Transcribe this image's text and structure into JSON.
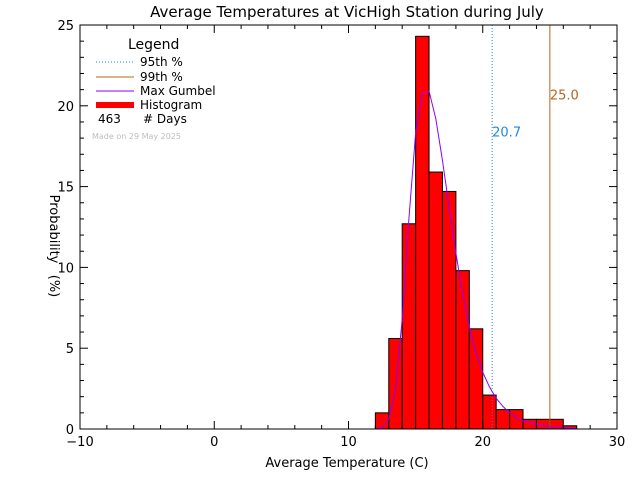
{
  "chart_data": {
    "type": "bar",
    "title": "Average Temperatures at VicHigh Station during July",
    "xlabel": "Average Temperature (C)",
    "ylabel": "Probability",
    "ylabel_unit": "(%)",
    "xlim": [
      -10,
      30
    ],
    "ylim": [
      0,
      25
    ],
    "x_ticks": [
      "−10",
      "0",
      "10",
      "20",
      "30"
    ],
    "x_tick_values": [
      -10,
      0,
      10,
      20,
      30
    ],
    "y_ticks": [
      "0",
      "5",
      "10",
      "15",
      "20",
      "25"
    ],
    "y_tick_values": [
      0,
      5,
      10,
      15,
      20,
      25
    ],
    "bin_width": 1,
    "histogram": {
      "name": "Histogram",
      "color": "#ff0000",
      "bin_starts": [
        12,
        13,
        14,
        15,
        16,
        17,
        18,
        19,
        20,
        21,
        22,
        23,
        24,
        25,
        26
      ],
      "values": [
        1.0,
        5.6,
        12.7,
        24.3,
        15.9,
        14.7,
        9.8,
        6.2,
        2.1,
        1.2,
        1.2,
        0.6,
        0.6,
        0.6,
        0.2
      ]
    },
    "gumbel_curve": {
      "name": "Max Gumbel",
      "color": "#8b00ff",
      "x": [
        12.0,
        12.5,
        13.0,
        13.5,
        14.0,
        14.5,
        15.0,
        15.5,
        16.0,
        16.5,
        17.0,
        17.5,
        18.0,
        18.5,
        19.0,
        19.5,
        20.0,
        20.5,
        21.0,
        21.5,
        22.0,
        22.5,
        23.0,
        24.0,
        25.0,
        26.0,
        27.0
      ],
      "y": [
        0.0,
        0.1,
        0.6,
        2.4,
        6.8,
        13.0,
        18.3,
        20.8,
        20.9,
        19.2,
        16.6,
        13.7,
        10.9,
        8.4,
        6.3,
        4.7,
        3.5,
        2.6,
        1.9,
        1.4,
        1.0,
        0.7,
        0.5,
        0.3,
        0.15,
        0.08,
        0.04
      ]
    },
    "percentile_95": {
      "name": "95th %",
      "value": 20.7,
      "label": "20.7",
      "color": "#1e88e5"
    },
    "percentile_99": {
      "name": "99th %",
      "value": 25.0,
      "label": "25.0",
      "color": "#b5651d"
    },
    "legend": {
      "title": "Legend",
      "placement": "top-left",
      "entries": [
        "95th %",
        "99th %",
        "Max Gumbel",
        "Histogram"
      ],
      "days_count": "463",
      "days_label": "# Days",
      "made_on": "Made on 29 May 2025"
    },
    "grid": false
  }
}
